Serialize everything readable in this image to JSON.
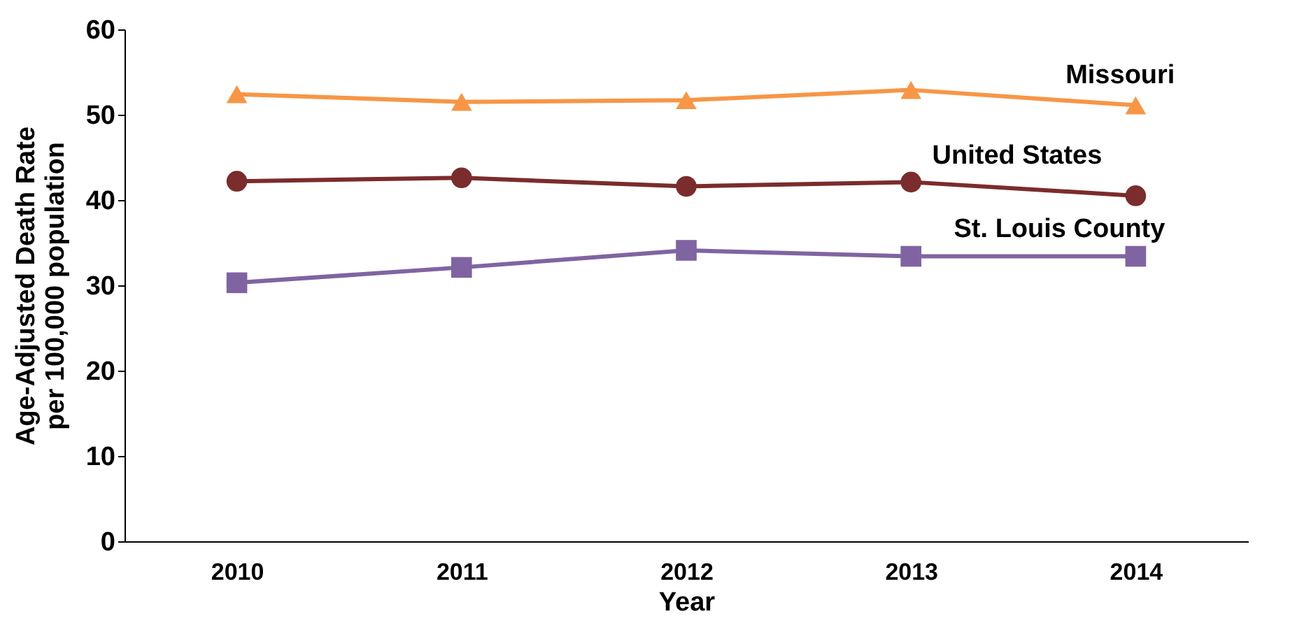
{
  "chart_data": {
    "type": "line",
    "xlabel": "Year",
    "ylabel": "Age-Adjusted Death Rate per 100,000 population",
    "categories": [
      "2010",
      "2011",
      "2012",
      "2013",
      "2014"
    ],
    "series": [
      {
        "name": "Missouri",
        "color": "#f79646",
        "marker": "triangle",
        "values": [
          52.4,
          51.5,
          51.7,
          52.9,
          51.1
        ]
      },
      {
        "name": "United States",
        "color": "#7b2c2c",
        "marker": "circle",
        "values": [
          42.2,
          42.6,
          41.6,
          42.1,
          40.5
        ]
      },
      {
        "name": "St. Louis County",
        "color": "#8064a2",
        "marker": "square",
        "values": [
          30.3,
          32.1,
          34.1,
          33.4,
          33.4
        ]
      }
    ],
    "ylim": [
      0,
      60
    ],
    "yticks": [
      0,
      10,
      20,
      30,
      40,
      50,
      60
    ],
    "grid": false,
    "legend": false
  }
}
